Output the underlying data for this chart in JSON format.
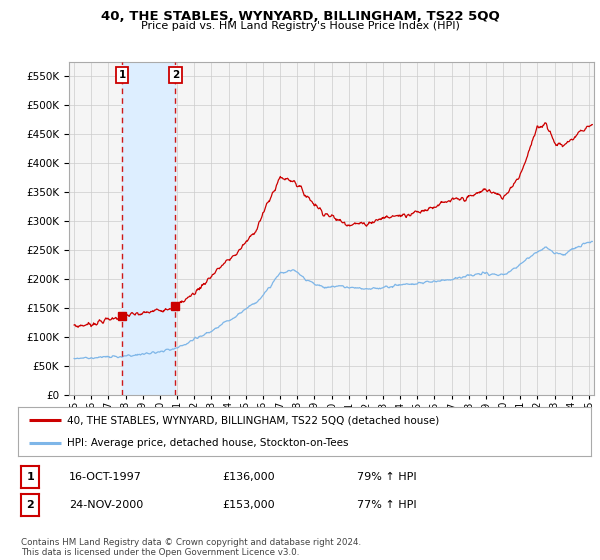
{
  "title": "40, THE STABLES, WYNYARD, BILLINGHAM, TS22 5QQ",
  "subtitle": "Price paid vs. HM Land Registry's House Price Index (HPI)",
  "legend_line1": "40, THE STABLES, WYNYARD, BILLINGHAM, TS22 5QQ (detached house)",
  "legend_line2": "HPI: Average price, detached house, Stockton-on-Tees",
  "transaction1_date": "16-OCT-1997",
  "transaction1_price": "£136,000",
  "transaction1_hpi": "79% ↑ HPI",
  "transaction1_x": 1997.79,
  "transaction1_y": 136000,
  "transaction2_date": "24-NOV-2000",
  "transaction2_price": "£153,000",
  "transaction2_hpi": "77% ↑ HPI",
  "transaction2_x": 2000.9,
  "transaction2_y": 153000,
  "red_line_color": "#CC0000",
  "blue_line_color": "#7EB6E8",
  "shade_color": "#DDEEFF",
  "vline_color": "#CC0000",
  "grid_color": "#CCCCCC",
  "background_color": "#FFFFFF",
  "plot_bg_color": "#F5F5F5",
  "ylim": [
    0,
    575000
  ],
  "yticks": [
    0,
    50000,
    100000,
    150000,
    200000,
    250000,
    300000,
    350000,
    400000,
    450000,
    500000,
    550000
  ],
  "xlim_start": 1994.7,
  "xlim_end": 2025.3,
  "footnote": "Contains HM Land Registry data © Crown copyright and database right 2024.\nThis data is licensed under the Open Government Licence v3.0."
}
